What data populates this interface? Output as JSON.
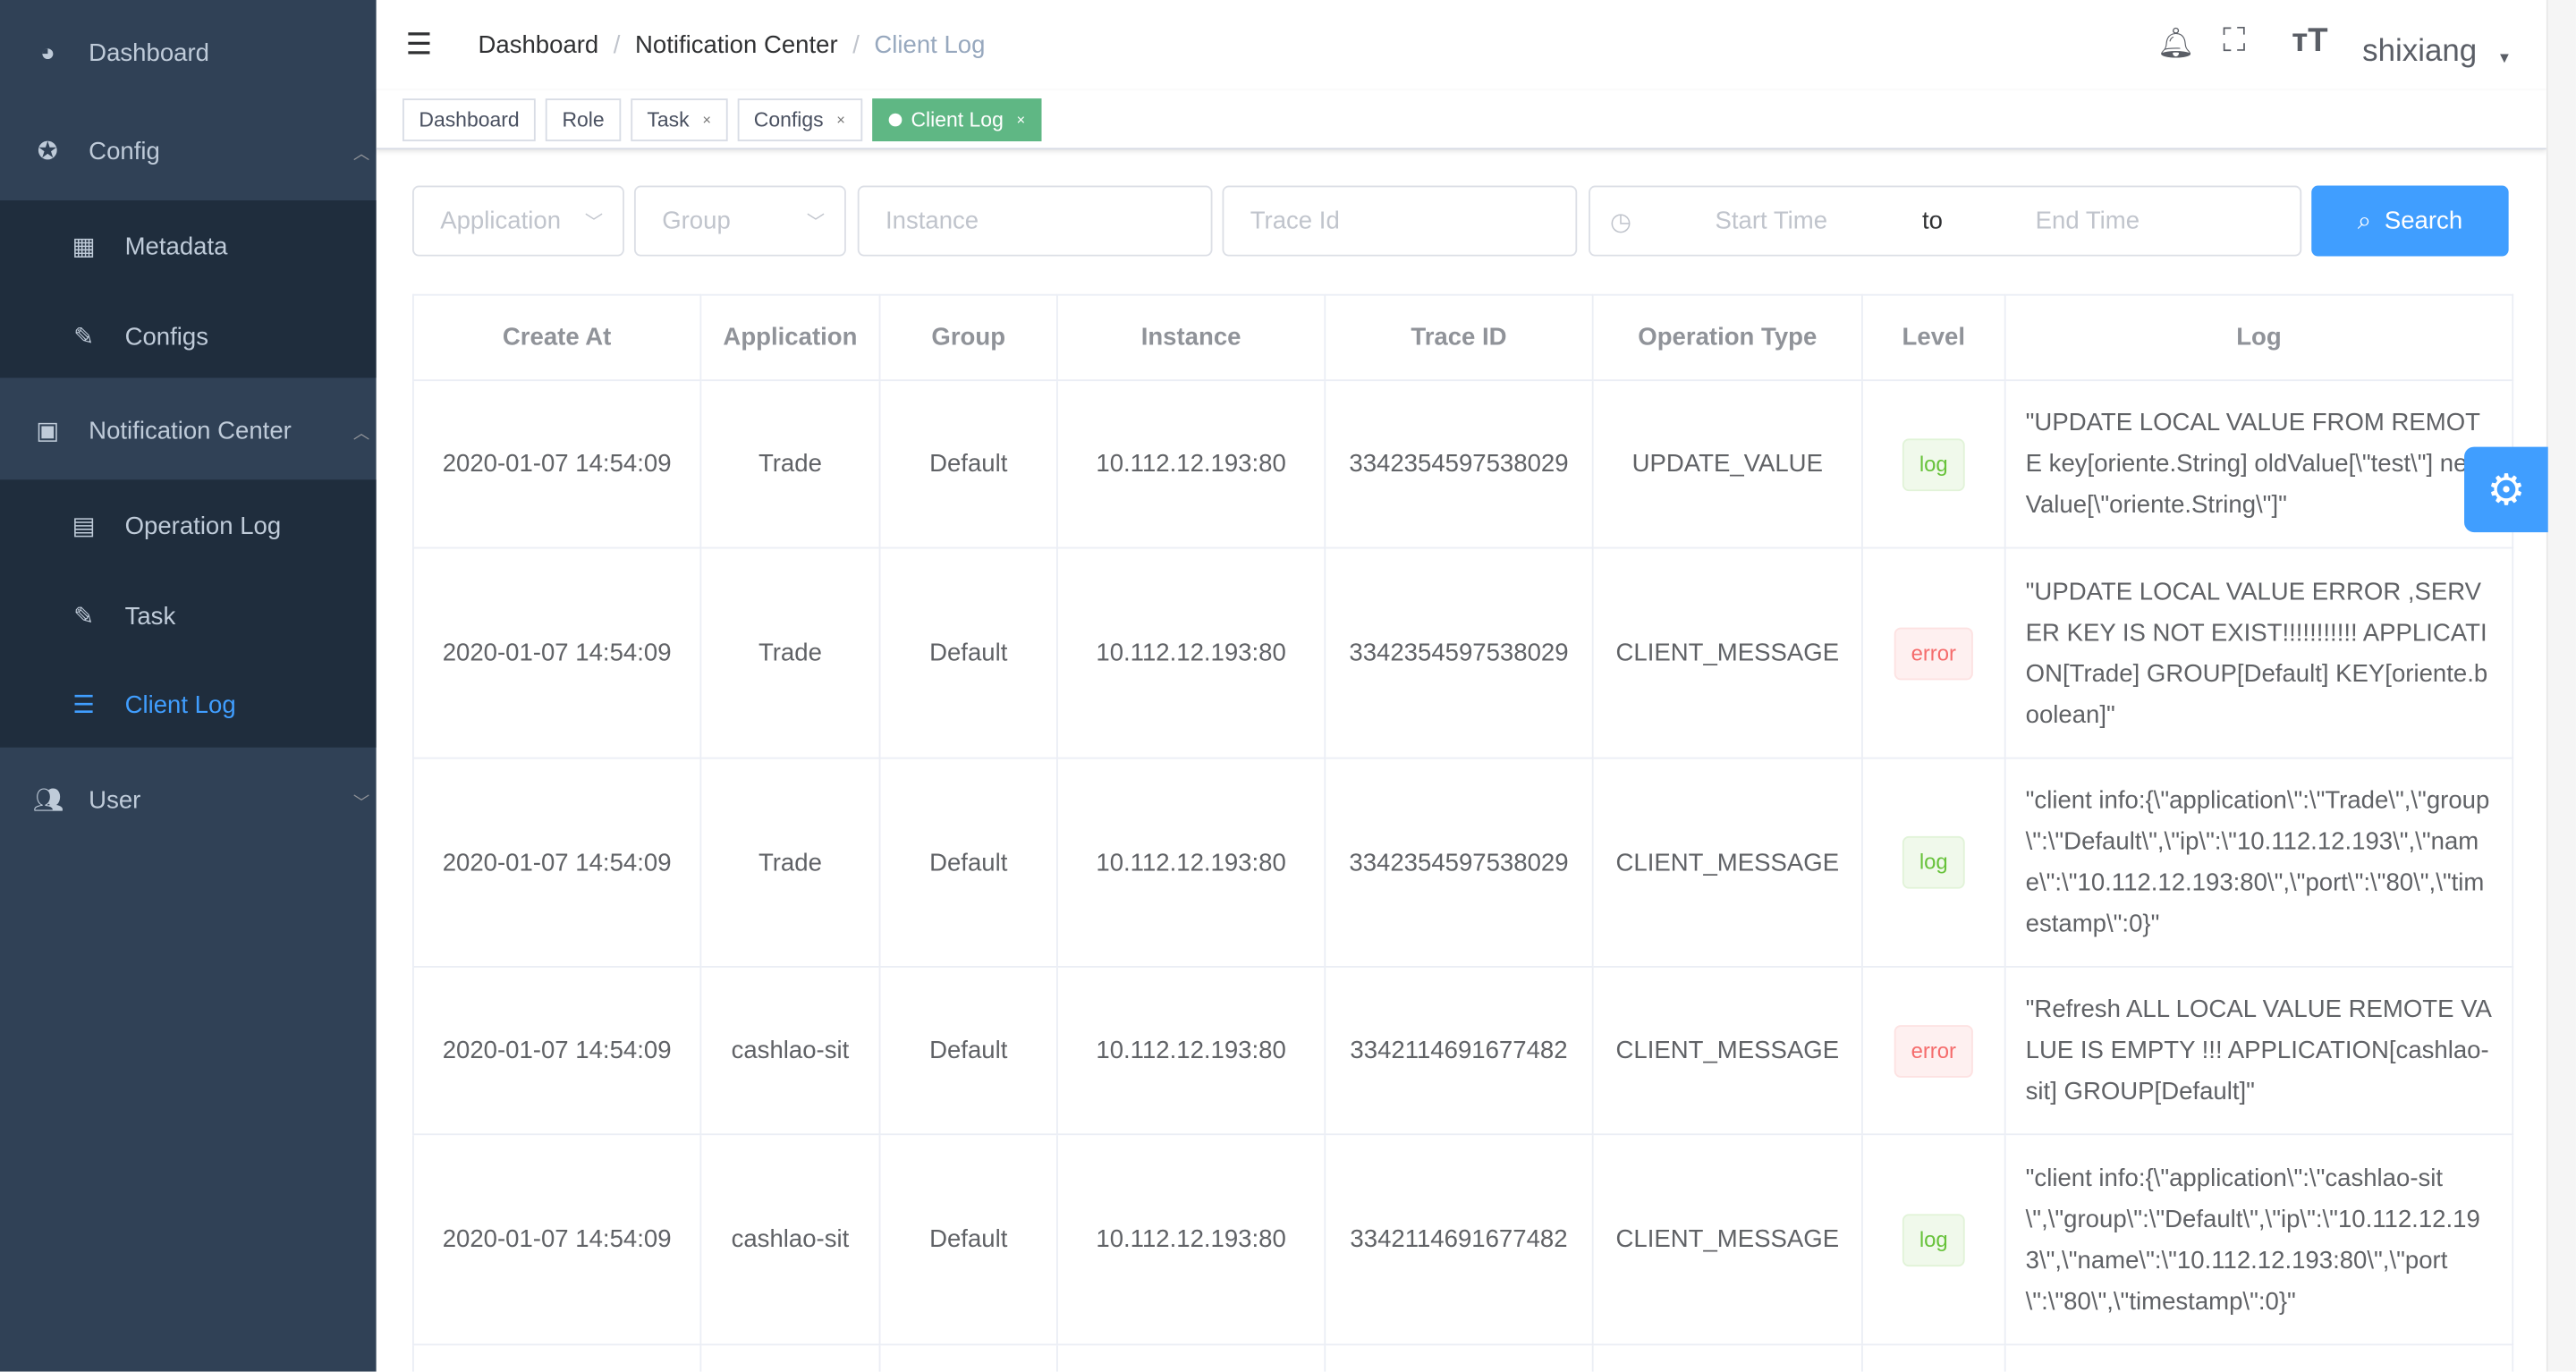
{
  "sidebar": {
    "items": [
      {
        "label": "Dashboard",
        "icon": "dashboard-icon"
      },
      {
        "label": "Config",
        "icon": "config-icon",
        "children": [
          {
            "label": "Metadata",
            "icon": "grid-icon"
          },
          {
            "label": "Configs",
            "icon": "palette-icon"
          }
        ]
      },
      {
        "label": "Notification Center",
        "icon": "message-icon",
        "children": [
          {
            "label": "Operation Log",
            "icon": "document-icon"
          },
          {
            "label": "Task",
            "icon": "edit-icon"
          },
          {
            "label": "Client Log",
            "icon": "list-icon",
            "active": true
          }
        ]
      },
      {
        "label": "User",
        "icon": "user-icon"
      }
    ]
  },
  "breadcrumb": [
    "Dashboard",
    "Notification Center",
    "Client Log"
  ],
  "header": {
    "user": "shixiang"
  },
  "tags": [
    {
      "label": "Dashboard"
    },
    {
      "label": "Role"
    },
    {
      "label": "Task",
      "close": "×"
    },
    {
      "label": "Configs",
      "close": "×"
    },
    {
      "label": "Client Log",
      "close": "×",
      "active": true
    }
  ],
  "filters": {
    "application": "Application",
    "group": "Group",
    "instance": "Instance",
    "trace_id": "Trace Id",
    "start": "Start Time",
    "to": "to",
    "end": "End Time",
    "search": "Search"
  },
  "table": {
    "headers": [
      "Create At",
      "Application",
      "Group",
      "Instance",
      "Trace ID",
      "Operation Type",
      "Level",
      "Log"
    ],
    "rows": [
      [
        "2020-01-07 14:54:09",
        "Trade",
        "Default",
        "10.112.12.193:80",
        "3342354597538029",
        "UPDATE_VALUE",
        "log",
        "\"UPDATE LOCAL VALUE FROM REMOTE key[oriente.String] oldValue[\\\"test\\\"] newValue[\\\"oriente.String\\\"]\""
      ],
      [
        "2020-01-07 14:54:09",
        "Trade",
        "Default",
        "10.112.12.193:80",
        "3342354597538029",
        "CLIENT_MESSAGE",
        "error",
        "\"UPDATE LOCAL VALUE ERROR ,SERVER KEY IS NOT EXIST!!!!!!!!!!! APPLICATION[Trade] GROUP[Default] KEY[oriente.boolean]\""
      ],
      [
        "2020-01-07 14:54:09",
        "Trade",
        "Default",
        "10.112.12.193:80",
        "3342354597538029",
        "CLIENT_MESSAGE",
        "log",
        "\"client info:{\\\"application\\\":\\\"Trade\\\",\\\"group\\\":\\\"Default\\\",\\\"ip\\\":\\\"10.112.12.193\\\",\\\"name\\\":\\\"10.112.12.193:80\\\",\\\"port\\\":\\\"80\\\",\\\"timestamp\\\":0}\""
      ],
      [
        "2020-01-07 14:54:09",
        "cashlao-sit",
        "Default",
        "10.112.12.193:80",
        "3342114691677482",
        "CLIENT_MESSAGE",
        "error",
        "\"Refresh ALL LOCAL VALUE REMOTE VALUE IS EMPTY !!! APPLICATION[cashlao-sit] GROUP[Default]\""
      ],
      [
        "2020-01-07 14:54:09",
        "cashlao-sit",
        "Default",
        "10.112.12.193:80",
        "3342114691677482",
        "CLIENT_MESSAGE",
        "log",
        "\"client info:{\\\"application\\\":\\\"cashlao-sit\\\",\\\"group\\\":\\\"Default\\\",\\\"ip\\\":\\\"10.112.12.193\\\",\\\"name\\\":\\\"10.112.12.193:80\\\",\\\"port\\\":\\\"80\\\",\\\"timestamp\\\":0}\""
      ]
    ]
  },
  "colors": {
    "sidebar": "#304156",
    "submenu": "#1f2d3d",
    "active": "#409eff",
    "tag_active": "#5fb784"
  }
}
